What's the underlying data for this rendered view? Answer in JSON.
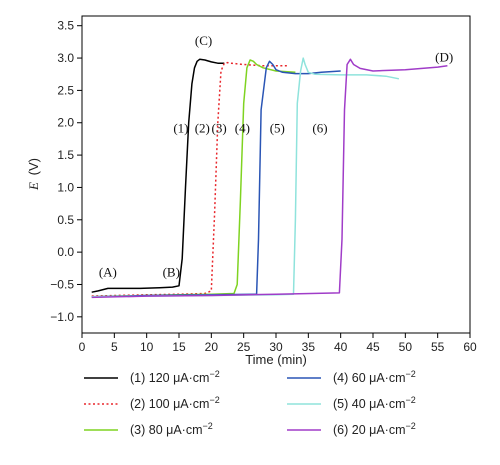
{
  "chart_data": {
    "type": "line",
    "xlabel": "Time (min)",
    "ylabel_symbol": "E",
    "ylabel_unit": "(V)",
    "xlim": [
      0,
      60
    ],
    "ylim": [
      -1.25,
      3.65
    ],
    "xticks": [
      0,
      5,
      10,
      15,
      20,
      25,
      30,
      35,
      40,
      45,
      50,
      55,
      60
    ],
    "yticks": [
      -1.0,
      -0.5,
      0.0,
      0.5,
      1.0,
      1.5,
      2.0,
      2.5,
      3.0,
      3.5
    ],
    "ytick_labels": [
      "−1.0",
      "−0.5",
      "0.0",
      "0.5",
      "1.0",
      "1.5",
      "2.0",
      "2.5",
      "3.0",
      "3.5"
    ],
    "grid": false,
    "legend_position": "bottom",
    "series": [
      {
        "name": "(1) 120 μA·cm⁻²",
        "legend_prefix": "(1) 120",
        "color": "#000000",
        "dash": "solid",
        "x": [
          1.5,
          2.5,
          4,
          6,
          9,
          12,
          14,
          15,
          15.5,
          16,
          16.5,
          17,
          17.4,
          17.8,
          18.2,
          19,
          20,
          21,
          22
        ],
        "y": [
          -0.62,
          -0.6,
          -0.56,
          -0.56,
          -0.56,
          -0.55,
          -0.54,
          -0.52,
          -0.1,
          1.0,
          2.0,
          2.6,
          2.85,
          2.95,
          2.98,
          2.97,
          2.94,
          2.92,
          2.92
        ]
      },
      {
        "name": "(2) 100 μA·cm⁻²",
        "legend_prefix": "(2) 100",
        "color": "#e8272c",
        "dash": "dotted",
        "x": [
          1.5,
          5,
          10,
          15,
          19,
          20,
          20.5,
          21,
          21.5,
          22,
          22.5,
          23,
          25,
          28,
          30,
          32
        ],
        "y": [
          -0.68,
          -0.67,
          -0.66,
          -0.65,
          -0.64,
          -0.6,
          0.6,
          2.0,
          2.8,
          2.92,
          2.93,
          2.92,
          2.9,
          2.88,
          2.88,
          2.88
        ]
      },
      {
        "name": "(3) 80 μA·cm⁻²",
        "legend_prefix": "(3) 80",
        "color": "#7fd321",
        "dash": "solid",
        "x": [
          1.5,
          5,
          10,
          15,
          20,
          23.5,
          24,
          24.5,
          25,
          25.5,
          26,
          26.5,
          27,
          28,
          30,
          33
        ],
        "y": [
          -0.69,
          -0.68,
          -0.67,
          -0.66,
          -0.65,
          -0.64,
          -0.5,
          0.8,
          2.3,
          2.85,
          2.97,
          2.95,
          2.9,
          2.85,
          2.8,
          2.78
        ]
      },
      {
        "name": "(4) 60 μA·cm⁻²",
        "legend_prefix": "(4) 60",
        "color": "#2a55b5",
        "dash": "solid",
        "x": [
          1.5,
          10,
          20,
          27,
          27.3,
          27.7,
          28.5,
          29,
          29.5,
          30,
          31,
          33,
          35,
          37,
          40
        ],
        "y": [
          -0.69,
          -0.67,
          -0.66,
          -0.65,
          0.2,
          2.2,
          2.85,
          2.95,
          2.9,
          2.82,
          2.78,
          2.76,
          2.76,
          2.78,
          2.8
        ]
      },
      {
        "name": "(5) 40 μA·cm⁻²",
        "legend_prefix": "(5) 40",
        "color": "#8fe3dc",
        "dash": "solid",
        "x": [
          1.5,
          10,
          20,
          30,
          32.7,
          33.0,
          33.3,
          33.8,
          34.2,
          34.5,
          35,
          36,
          40,
          44,
          47,
          49
        ],
        "y": [
          -0.69,
          -0.68,
          -0.67,
          -0.66,
          -0.65,
          0.5,
          2.3,
          2.8,
          3.0,
          2.9,
          2.78,
          2.75,
          2.74,
          2.74,
          2.72,
          2.68
        ]
      },
      {
        "name": "(6) 20 μA·cm⁻²",
        "legend_prefix": "(6) 20",
        "color": "#a03cc8",
        "dash": "solid",
        "x": [
          1.5,
          10,
          20,
          30,
          39.8,
          40.2,
          40.6,
          41.0,
          41.5,
          42,
          43,
          45,
          50,
          55,
          56.5
        ],
        "y": [
          -0.7,
          -0.68,
          -0.67,
          -0.65,
          -0.63,
          0.2,
          2.2,
          2.9,
          2.98,
          2.9,
          2.84,
          2.8,
          2.82,
          2.86,
          2.88
        ]
      }
    ],
    "annotations": [
      {
        "text": "(A)",
        "x": 4,
        "y": -0.38
      },
      {
        "text": "(B)",
        "x": 13.8,
        "y": -0.38
      },
      {
        "text": "(C)",
        "x": 18.8,
        "y": 3.2
      },
      {
        "text": "(D)",
        "x": 56,
        "y": 2.95
      },
      {
        "text": "(1)",
        "x": 15.3,
        "y": 1.85
      },
      {
        "text": "(2)",
        "x": 18.6,
        "y": 1.85
      },
      {
        "text": "(3)",
        "x": 21.2,
        "y": 1.85
      },
      {
        "text": "(4)",
        "x": 24.8,
        "y": 1.85
      },
      {
        "text": "(5)",
        "x": 30.2,
        "y": 1.85
      },
      {
        "text": "(6)",
        "x": 36.8,
        "y": 1.85
      }
    ],
    "legend_unit": "μA·cm",
    "legend_exponent": "−2"
  }
}
